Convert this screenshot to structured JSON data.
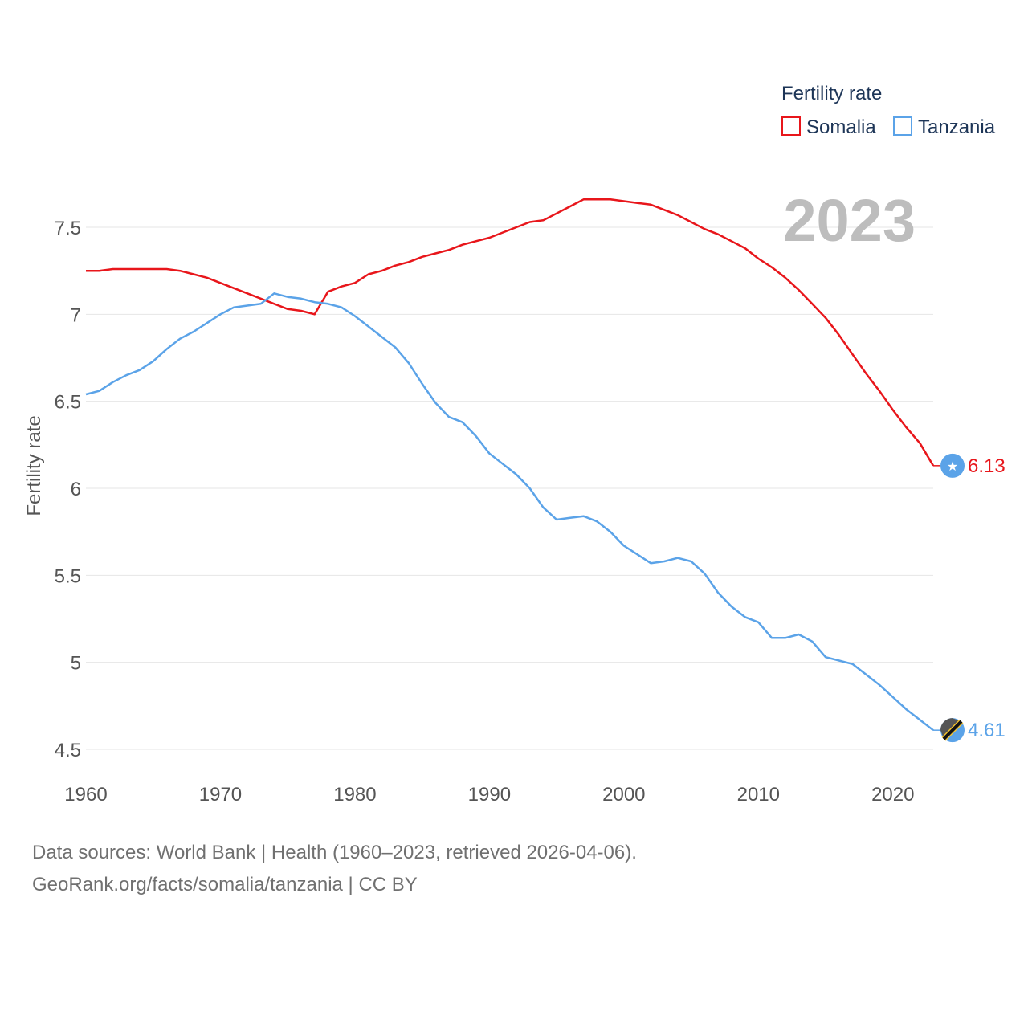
{
  "chart_data": {
    "type": "line",
    "title": "",
    "highlight_year": "2023",
    "xlabel": "",
    "ylabel": "Fertility rate",
    "xlim": [
      1960,
      2023
    ],
    "ylim": [
      4.45,
      7.8
    ],
    "x_ticks": [
      "1960",
      "1970",
      "1980",
      "1990",
      "2000",
      "2010",
      "2020"
    ],
    "y_ticks": [
      "4.5",
      "5",
      "5.5",
      "6",
      "6.5",
      "7",
      "7.5"
    ],
    "legend": {
      "title": "Fertility rate",
      "placement": "top-right"
    },
    "x": [
      1960,
      1961,
      1962,
      1963,
      1964,
      1965,
      1966,
      1967,
      1968,
      1969,
      1970,
      1971,
      1972,
      1973,
      1974,
      1975,
      1976,
      1977,
      1978,
      1979,
      1980,
      1981,
      1982,
      1983,
      1984,
      1985,
      1986,
      1987,
      1988,
      1989,
      1990,
      1991,
      1992,
      1993,
      1994,
      1995,
      1996,
      1997,
      1998,
      1999,
      2000,
      2001,
      2002,
      2003,
      2004,
      2005,
      2006,
      2007,
      2008,
      2009,
      2010,
      2011,
      2012,
      2013,
      2014,
      2015,
      2016,
      2017,
      2018,
      2019,
      2020,
      2021,
      2022,
      2023
    ],
    "series": [
      {
        "name": "Somalia",
        "color": "#e8161b",
        "end_label": "6.13",
        "values": [
          7.25,
          7.25,
          7.26,
          7.26,
          7.26,
          7.26,
          7.26,
          7.25,
          7.23,
          7.21,
          7.18,
          7.15,
          7.12,
          7.09,
          7.06,
          7.03,
          7.02,
          7.0,
          7.13,
          7.16,
          7.18,
          7.23,
          7.25,
          7.28,
          7.3,
          7.33,
          7.35,
          7.37,
          7.4,
          7.42,
          7.44,
          7.47,
          7.5,
          7.53,
          7.54,
          7.58,
          7.62,
          7.66,
          7.66,
          7.66,
          7.65,
          7.64,
          7.63,
          7.6,
          7.57,
          7.53,
          7.49,
          7.46,
          7.42,
          7.38,
          7.32,
          7.27,
          7.21,
          7.14,
          7.06,
          6.98,
          6.88,
          6.77,
          6.66,
          6.56,
          6.45,
          6.35,
          6.26,
          6.13
        ]
      },
      {
        "name": "Tanzania",
        "color": "#5ba3e8",
        "end_label": "4.61",
        "values": [
          6.54,
          6.56,
          6.61,
          6.65,
          6.68,
          6.73,
          6.8,
          6.86,
          6.9,
          6.95,
          7.0,
          7.04,
          7.05,
          7.06,
          7.12,
          7.1,
          7.09,
          7.07,
          7.06,
          7.04,
          6.99,
          6.93,
          6.87,
          6.81,
          6.72,
          6.6,
          6.49,
          6.41,
          6.38,
          6.3,
          6.2,
          6.14,
          6.08,
          6.0,
          5.89,
          5.82,
          5.83,
          5.84,
          5.81,
          5.75,
          5.67,
          5.62,
          5.57,
          5.58,
          5.6,
          5.58,
          5.51,
          5.4,
          5.32,
          5.26,
          5.23,
          5.14,
          5.14,
          5.16,
          5.12,
          5.03,
          5.01,
          4.99,
          4.93,
          4.87,
          4.8,
          4.73,
          4.67,
          4.61
        ]
      }
    ]
  },
  "footer": {
    "sources": "Data sources: World Bank | Health (1960–2023, retrieved 2026-04-06).",
    "credit": "GeoRank.org/facts/somalia/tanzania | CC BY"
  }
}
